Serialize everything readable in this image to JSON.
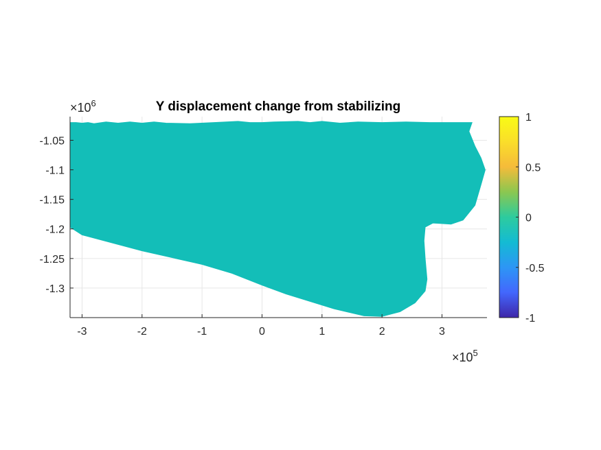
{
  "chart_data": {
    "type": "heatmap",
    "title": "Y displacement change from stabilizing",
    "xlabel": "",
    "ylabel": "",
    "x_multiplier_label": "×10",
    "x_multiplier_exp": "5",
    "y_multiplier_label": "×10",
    "y_multiplier_exp": "6",
    "xlim": [
      -3.2,
      3.75
    ],
    "ylim": [
      -1.35,
      -1.01
    ],
    "x_ticks": [
      -3,
      -2,
      -1,
      0,
      1,
      2,
      3
    ],
    "x_tick_labels": [
      "-3",
      "-2",
      "-1",
      "0",
      "1",
      "2",
      "3"
    ],
    "y_ticks": [
      -1.05,
      -1.1,
      -1.15,
      -1.2,
      -1.25,
      -1.3
    ],
    "y_tick_labels": [
      "-1.05",
      "-1.1",
      "-1.15",
      "-1.2",
      "-1.25",
      "-1.3"
    ],
    "grid": true,
    "field_value": 0,
    "field_color": "#13BEB8",
    "region_outline": [
      [
        -3.2,
        -1.02
      ],
      [
        -3.1,
        -1.02
      ],
      [
        -3.0,
        -1.021
      ],
      [
        -2.9,
        -1.02
      ],
      [
        -2.8,
        -1.022
      ],
      [
        -2.6,
        -1.019
      ],
      [
        -2.4,
        -1.021
      ],
      [
        -2.2,
        -1.019
      ],
      [
        -2.0,
        -1.021
      ],
      [
        -1.8,
        -1.019
      ],
      [
        -1.6,
        -1.021
      ],
      [
        -1.2,
        -1.022
      ],
      [
        -0.8,
        -1.02
      ],
      [
        -0.4,
        -1.018
      ],
      [
        -0.2,
        -1.02
      ],
      [
        0.0,
        -1.02
      ],
      [
        0.2,
        -1.019
      ],
      [
        0.6,
        -1.018
      ],
      [
        0.8,
        -1.02
      ],
      [
        1.0,
        -1.018
      ],
      [
        1.3,
        -1.021
      ],
      [
        1.6,
        -1.019
      ],
      [
        2.0,
        -1.02
      ],
      [
        2.4,
        -1.019
      ],
      [
        2.8,
        -1.02
      ],
      [
        3.1,
        -1.02
      ],
      [
        3.5,
        -1.02
      ],
      [
        3.45,
        -1.035
      ],
      [
        3.55,
        -1.06
      ],
      [
        3.65,
        -1.08
      ],
      [
        3.72,
        -1.1
      ],
      [
        3.65,
        -1.125
      ],
      [
        3.55,
        -1.16
      ],
      [
        3.35,
        -1.185
      ],
      [
        3.15,
        -1.192
      ],
      [
        2.85,
        -1.19
      ],
      [
        2.72,
        -1.197
      ],
      [
        2.7,
        -1.22
      ],
      [
        2.72,
        -1.25
      ],
      [
        2.75,
        -1.285
      ],
      [
        2.72,
        -1.305
      ],
      [
        2.55,
        -1.325
      ],
      [
        2.3,
        -1.34
      ],
      [
        2.0,
        -1.348
      ],
      [
        1.7,
        -1.347
      ],
      [
        1.2,
        -1.335
      ],
      [
        0.4,
        -1.31
      ],
      [
        0.0,
        -1.295
      ],
      [
        -0.5,
        -1.275
      ],
      [
        -1.0,
        -1.26
      ],
      [
        -2.0,
        -1.237
      ],
      [
        -3.0,
        -1.21
      ],
      [
        -3.2,
        -1.197
      ]
    ],
    "colorbar": {
      "limits": [
        -1,
        1
      ],
      "ticks": [
        1,
        0.5,
        0,
        -0.5,
        -1
      ],
      "tick_labels": [
        "1",
        "0.5",
        "0",
        "-0.5",
        "-1"
      ],
      "colormap": [
        "#3E26A8",
        "#4367FD",
        "#2D96F5",
        "#14BBD3",
        "#2DCB9E",
        "#8BC750",
        "#F5BB3A",
        "#FADE2A",
        "#F9FB15"
      ]
    }
  }
}
